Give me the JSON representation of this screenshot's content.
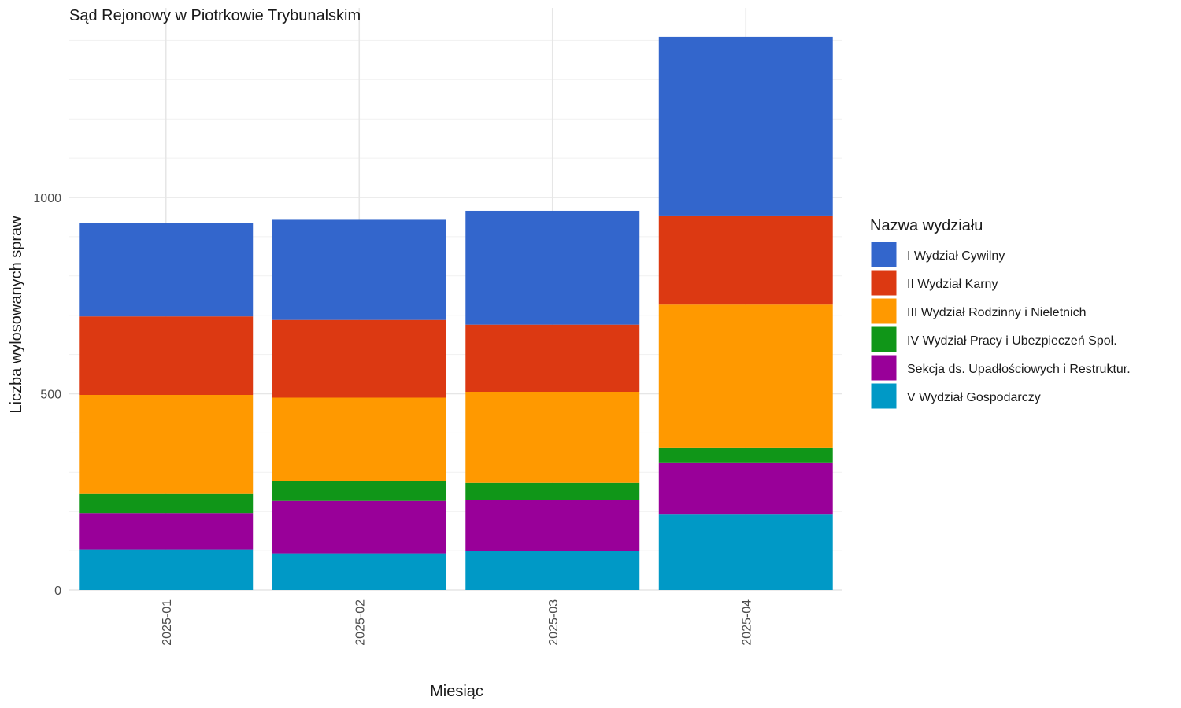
{
  "chart_data": {
    "type": "bar",
    "stacked": true,
    "title": "Sąd Rejonowy w Piotrkowie Trybunalskim",
    "xlabel": "Miesiąc",
    "ylabel": "Liczba wylosowanych spraw",
    "categories": [
      "2025-01",
      "2025-02",
      "2025-03",
      "2025-04"
    ],
    "ylim": [
      0,
      1480
    ],
    "yticks": [
      0,
      500,
      1000
    ],
    "ytick_labels": [
      "0",
      "500",
      "1000"
    ],
    "grid": true,
    "legend": {
      "title": "Nazwa wydziału",
      "placement": "right"
    },
    "series": [
      {
        "name": "V Wydział Gospodarczy",
        "color": "#0099c6",
        "values": [
          103,
          93,
          99,
          192
        ]
      },
      {
        "name": "Sekcja ds. Upadłościowych i Restruktur.",
        "color": "#990099",
        "values": [
          93,
          134,
          130,
          133
        ]
      },
      {
        "name": "IV Wydział Pracy i Ubezpieczeń Społ.",
        "color": "#109618",
        "values": [
          49,
          50,
          44,
          38
        ]
      },
      {
        "name": "III Wydział Rodzinny i Nieletnich",
        "color": "#ff9900",
        "values": [
          252,
          213,
          232,
          364
        ]
      },
      {
        "name": "II Wydział Karny",
        "color": "#dc3912",
        "values": [
          200,
          198,
          171,
          227
        ]
      },
      {
        "name": "I Wydział Cywilny",
        "color": "#3366cc",
        "values": [
          238,
          255,
          290,
          455
        ]
      }
    ],
    "legend_order": [
      "I Wydział Cywilny",
      "II Wydział Karny",
      "III Wydział Rodzinny i Nieletnich",
      "IV Wydział Pracy i Ubezpieczeń Społ.",
      "Sekcja ds. Upadłościowych i Restruktur.",
      "V Wydział Gospodarczy"
    ]
  }
}
